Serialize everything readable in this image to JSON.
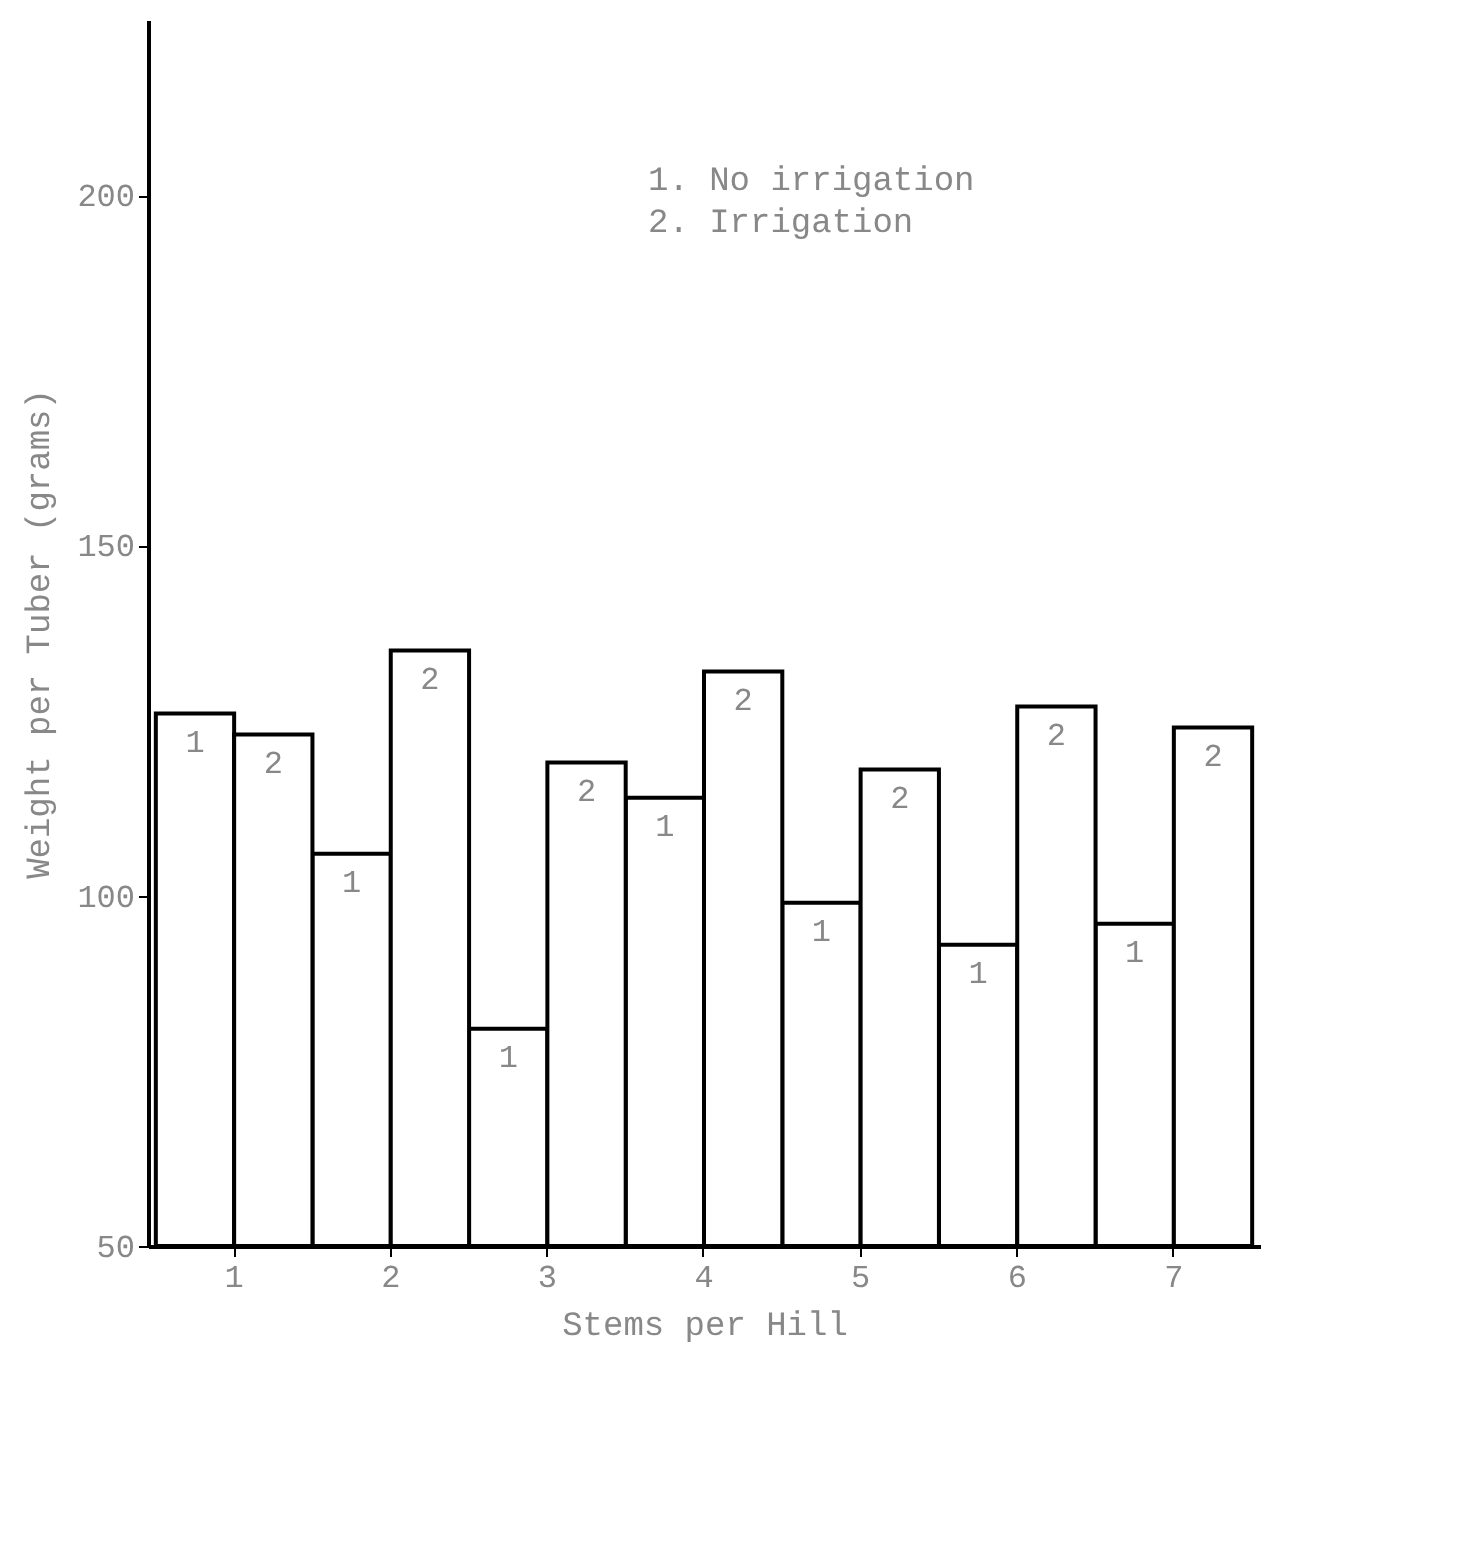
{
  "chart_data": {
    "type": "bar",
    "xlabel": "Stems per Hill",
    "ylabel": "Weight per Tuber (grams)",
    "categories": [
      "1",
      "2",
      "3",
      "4",
      "5",
      "6",
      "7"
    ],
    "series": [
      {
        "name": "1",
        "color": "#ffffff",
        "values": [
          126,
          106,
          81,
          114,
          99,
          93,
          96
        ]
      },
      {
        "name": "2",
        "color": "#ffffff",
        "values": [
          123,
          135,
          119,
          132,
          118,
          127,
          124
        ]
      }
    ],
    "annotations": [
      "1. No irrigation",
      "2. Irrigation"
    ],
    "ylim": [
      50,
      225
    ],
    "yticks": [
      50,
      100,
      150,
      200
    ],
    "grid": false
  }
}
